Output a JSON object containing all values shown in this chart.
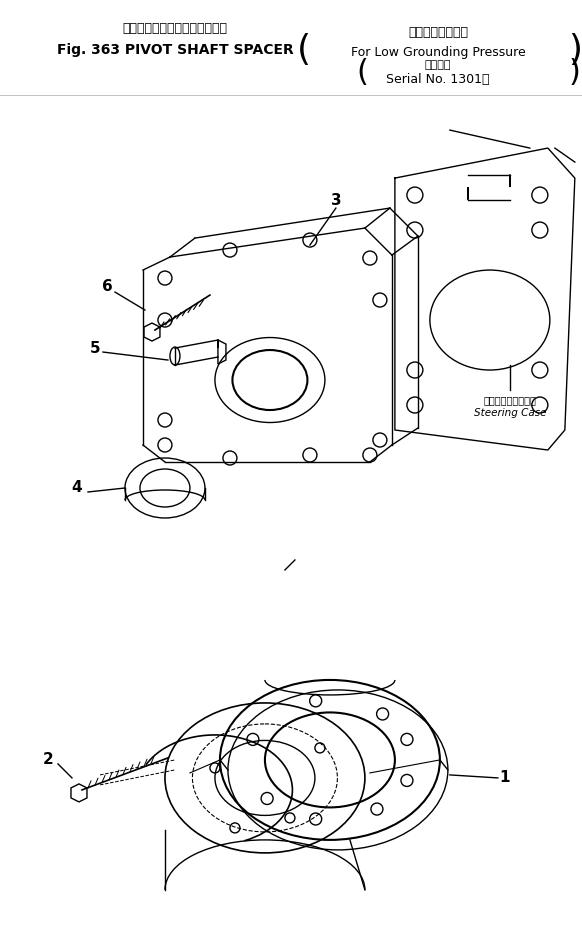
{
  "title_line1_jp": "ピボット　シャフト　スペーサ",
  "title_line1_en": "Fig. 363 PIVOT SHAFT SPACER",
  "title_line2_jp": "低接地圧仕様車用",
  "title_line2_en": "For Low Grounding Pressure",
  "title_line3_jp": "適用号機",
  "title_line3_en": "Serial No. 1301～",
  "steering_case_jp": "ステアリングケース",
  "steering_case_en": "Steering Case",
  "bg_color": "#ffffff",
  "line_color": "#000000",
  "fig_width": 5.82,
  "fig_height": 9.51
}
